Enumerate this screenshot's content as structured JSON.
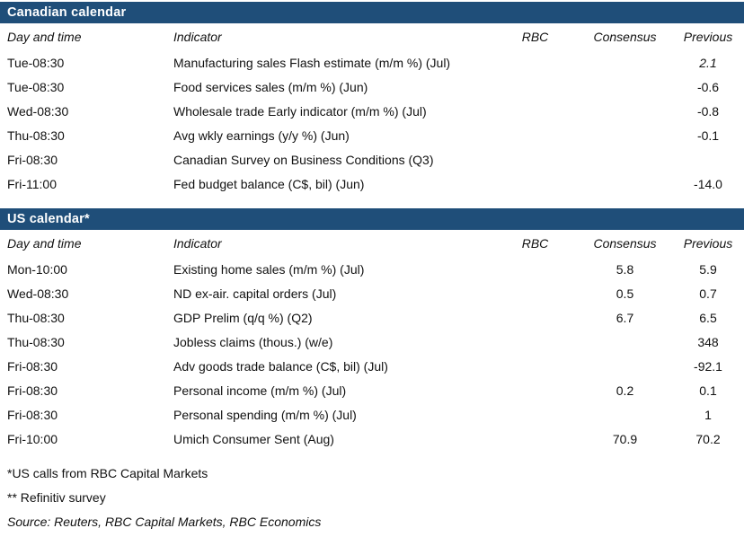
{
  "accent": {
    "section_header_bg": "#1F4E79",
    "section_header_text": "#FFFFFF",
    "body_text": "#111111"
  },
  "columns": {
    "day": "Day and time",
    "indicator": "Indicator",
    "rbc": "RBC",
    "consensus": "Consensus",
    "previous": "Previous"
  },
  "sections": [
    {
      "title": "Canadian calendar",
      "rows": [
        {
          "day": "Tue-08:30",
          "indicator": "Manufacturing sales Flash estimate (m/m %)  (Jul)",
          "rbc": "",
          "consensus": "",
          "previous": "2.1",
          "previous_italic": true
        },
        {
          "day": "Tue-08:30",
          "indicator": "Food services sales (m/m %) (Jun)",
          "rbc": "",
          "consensus": "",
          "previous": "-0.6"
        },
        {
          "day": "Wed-08:30",
          "indicator": "Wholesale trade Early indicator (m/m %)  (Jul)",
          "rbc": "",
          "consensus": "",
          "previous": "-0.8"
        },
        {
          "day": "Thu-08:30",
          "indicator": "Avg wkly earnings (y/y %) (Jun)",
          "rbc": "",
          "consensus": "",
          "previous": "-0.1"
        },
        {
          "day": "Fri-08:30",
          "indicator": "Canadian Survey on Business Conditions (Q3)",
          "rbc": "",
          "consensus": "",
          "previous": ""
        },
        {
          "day": "Fri-11:00",
          "indicator": "Fed budget balance (C$, bil) (Jun)",
          "rbc": "",
          "consensus": "",
          "previous": "-14.0"
        }
      ]
    },
    {
      "title": "US calendar*",
      "rows": [
        {
          "day": "Mon-10:00",
          "indicator": "Existing home sales (m/m %) (Jul)",
          "rbc": "",
          "consensus": "5.8",
          "previous": "5.9"
        },
        {
          "day": "Wed-08:30",
          "indicator": "ND ex-air. capital orders (Jul)",
          "rbc": "",
          "consensus": "0.5",
          "previous": "0.7"
        },
        {
          "day": "Thu-08:30",
          "indicator": "GDP Prelim (q/q %) (Q2)",
          "rbc": "",
          "consensus": "6.7",
          "previous": "6.5"
        },
        {
          "day": "Thu-08:30",
          "indicator": "Jobless claims (thous.) (w/e)",
          "rbc": "",
          "consensus": "",
          "previous": "348"
        },
        {
          "day": "Fri-08:30",
          "indicator": "Adv goods trade balance (C$, bil) (Jul)",
          "rbc": "",
          "consensus": "",
          "previous": "-92.1"
        },
        {
          "day": "Fri-08:30",
          "indicator": "Personal income (m/m %) (Jul)",
          "rbc": "",
          "consensus": "0.2",
          "previous": "0.1"
        },
        {
          "day": "Fri-08:30",
          "indicator": "Personal spending (m/m %) (Jul)",
          "rbc": "",
          "consensus": "",
          "previous": "1"
        },
        {
          "day": "Fri-10:00",
          "indicator": "Umich Consumer Sent (Aug)",
          "rbc": "",
          "consensus": "70.9",
          "previous": "70.2"
        }
      ]
    }
  ],
  "footnotes": [
    {
      "text": "*US calls from RBC Capital Markets",
      "italic": false
    },
    {
      "text": "** Refinitiv survey",
      "italic": false
    },
    {
      "text": "Source: Reuters, RBC Capital Markets, RBC Economics",
      "italic": true
    }
  ]
}
